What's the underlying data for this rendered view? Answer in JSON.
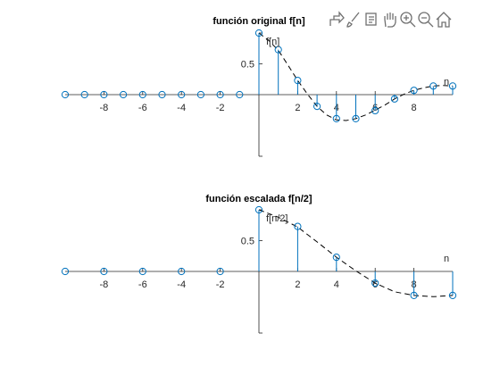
{
  "toolbar": {
    "icons": [
      "export-icon",
      "brush-icon",
      "data-tips-icon",
      "pan-icon",
      "zoom-in-icon",
      "zoom-out-icon",
      "home-icon"
    ]
  },
  "chart_data": [
    {
      "type": "stem",
      "title": "función original f[n]",
      "ylabel": "f[n]",
      "xlabel": "n",
      "xlim": [
        -10,
        10
      ],
      "ylim": [
        -1,
        1
      ],
      "xticks": [
        -8,
        -6,
        -4,
        -2,
        2,
        4,
        6,
        8
      ],
      "xtick_labels": [
        "-8",
        "-6",
        "-4",
        "-2",
        "2",
        "4",
        "6",
        "8"
      ],
      "yticks": [
        0.5
      ],
      "ytick_labels": [
        "0.5"
      ],
      "stem_color": "#0072BD",
      "x": [
        -10,
        -9,
        -8,
        -7,
        -6,
        -5,
        -4,
        -3,
        -2,
        -1,
        0,
        1,
        2,
        3,
        4,
        5,
        6,
        7,
        8,
        9,
        10
      ],
      "y": [
        0,
        0,
        0,
        0,
        0,
        0,
        0,
        0,
        0,
        0,
        1,
        0.73,
        0.23,
        -0.19,
        -0.39,
        -0.39,
        -0.26,
        -0.07,
        0.07,
        0.14,
        0.14
      ],
      "continuous": {
        "x": [
          0,
          0.5,
          1,
          1.5,
          2,
          2.5,
          3,
          3.5,
          4,
          4.5,
          5,
          5.5,
          6,
          6.5,
          7,
          7.5,
          8,
          8.5,
          9,
          9.5,
          10
        ],
        "y": [
          1,
          0.88,
          0.72,
          0.48,
          0.23,
          0.01,
          -0.19,
          -0.33,
          -0.41,
          -0.42,
          -0.39,
          -0.33,
          -0.25,
          -0.17,
          -0.07,
          0.01,
          0.07,
          0.11,
          0.14,
          0.15,
          0.14
        ]
      }
    },
    {
      "type": "stem",
      "title": "función escalada f[n/2]",
      "ylabel": "f[n/2]",
      "xlabel": "n",
      "xlim": [
        -10,
        10
      ],
      "ylim": [
        -1,
        1
      ],
      "xticks": [
        -8,
        -6,
        -4,
        -2,
        2,
        4,
        6,
        8
      ],
      "xtick_labels": [
        "-8",
        "-6",
        "-4",
        "-2",
        "2",
        "4",
        "6",
        "8"
      ],
      "yticks": [
        0.5
      ],
      "ytick_labels": [
        "0.5"
      ],
      "stem_color": "#0072BD",
      "x": [
        -10,
        -8,
        -6,
        -4,
        -2,
        0,
        2,
        4,
        6,
        8,
        10
      ],
      "y": [
        0,
        0,
        0,
        0,
        0,
        1,
        0.73,
        0.23,
        -0.19,
        -0.39,
        -0.39
      ],
      "continuous": {
        "x": [
          0,
          1,
          2,
          3,
          4,
          5,
          6,
          7,
          8,
          9,
          10
        ],
        "y": [
          1,
          0.88,
          0.72,
          0.48,
          0.23,
          0.01,
          -0.19,
          -0.33,
          -0.39,
          -0.41,
          -0.39
        ]
      }
    }
  ]
}
